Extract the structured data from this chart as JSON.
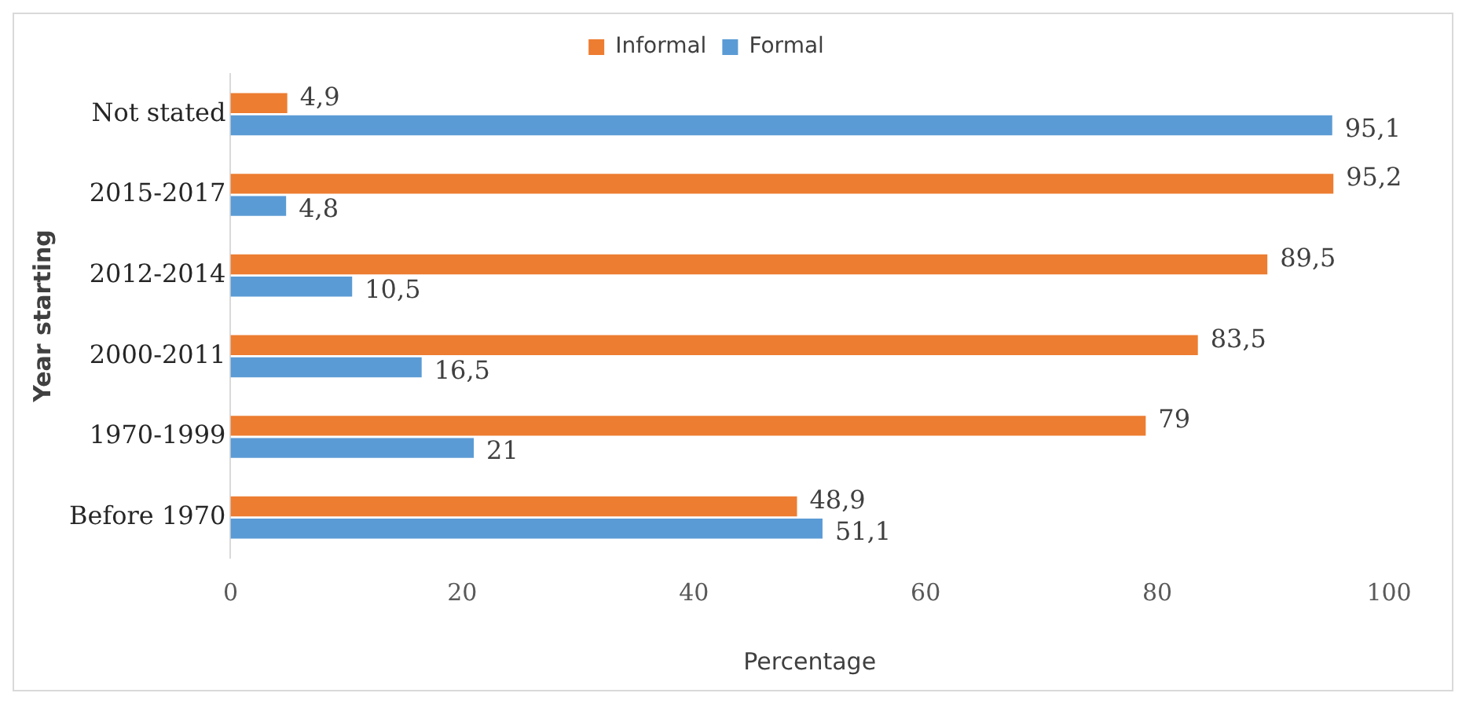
{
  "chart_data": {
    "type": "bar",
    "orientation": "horizontal",
    "xlabel": "Percentage",
    "ylabel": "Year starting",
    "categories": [
      "Not stated",
      "2015-2017",
      "2012-2014",
      "2000-2011",
      "1970-1999",
      "Before 1970"
    ],
    "series": [
      {
        "name": "Informal",
        "color": "#ed7d31",
        "values": [
          4.9,
          95.2,
          89.5,
          83.5,
          79,
          48.9
        ],
        "value_labels": [
          "4,9",
          "95,2",
          "89,5",
          "83,5",
          "79",
          "48,9"
        ]
      },
      {
        "name": "Formal",
        "color": "#5b9bd5",
        "values": [
          95.1,
          4.8,
          10.5,
          16.5,
          21,
          51.1
        ],
        "value_labels": [
          "95,1",
          "4,8",
          "10,5",
          "16,5",
          "21",
          "51,1"
        ]
      }
    ],
    "xlim": [
      0,
      100
    ],
    "xticks": [
      0,
      20,
      40,
      60,
      80,
      100
    ],
    "grid": false,
    "legend": "top"
  }
}
